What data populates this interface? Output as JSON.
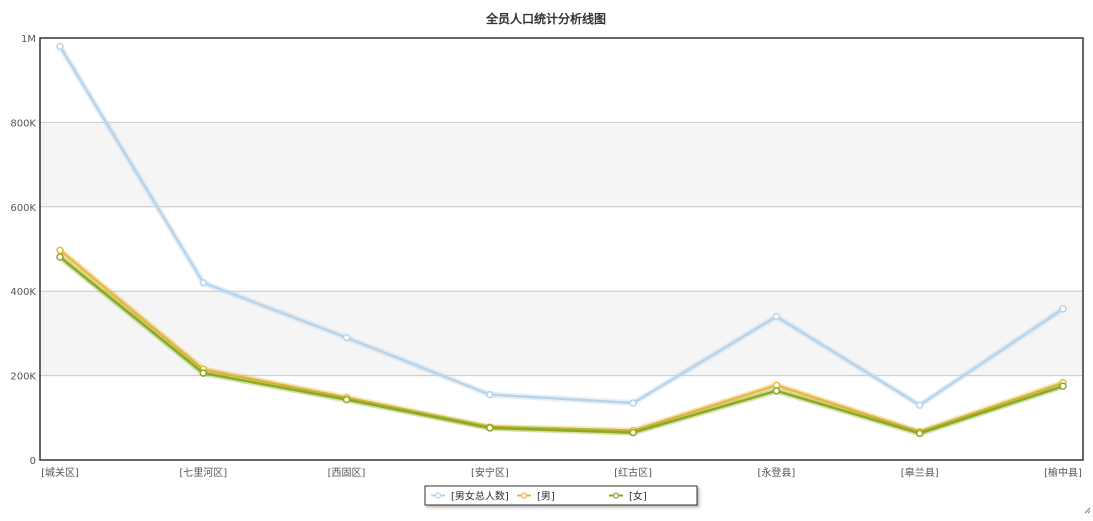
{
  "chart_data": {
    "type": "line",
    "title": "全员人口统计分析线图",
    "xlabel": "",
    "ylabel": "",
    "categories": [
      "[城关区]",
      "[七里河区]",
      "[西固区]",
      "[安宁区]",
      "[红古区]",
      "[永登县]",
      "[皋兰县]",
      "[榆中县]"
    ],
    "ylim": [
      0,
      1000000
    ],
    "yticks": [
      {
        "value": 0,
        "label": "0"
      },
      {
        "value": 200000,
        "label": "200K"
      },
      {
        "value": 400000,
        "label": "400K"
      },
      {
        "value": 600000,
        "label": "600K"
      },
      {
        "value": 800000,
        "label": "800K"
      },
      {
        "value": 1000000,
        "label": "1M"
      }
    ],
    "grid": true,
    "legend_position": "bottom-center",
    "series": [
      {
        "name": "[男女总人数]",
        "color": "#b9d3e8",
        "values": [
          980000,
          420000,
          290000,
          155000,
          135000,
          340000,
          130000,
          358000
        ]
      },
      {
        "name": "[男]",
        "color": "#e8b840",
        "values": [
          497000,
          215000,
          148000,
          78000,
          70000,
          177000,
          67000,
          183000
        ]
      },
      {
        "name": "[女]",
        "color": "#8aaa22",
        "values": [
          481000,
          206000,
          143000,
          76000,
          65000,
          164000,
          63000,
          175000
        ]
      }
    ]
  }
}
